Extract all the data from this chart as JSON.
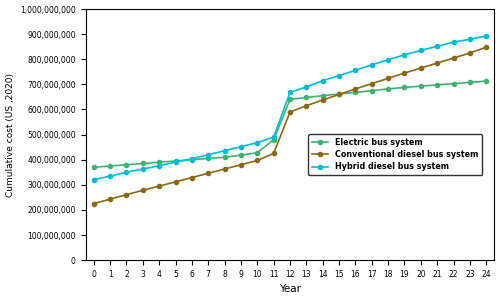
{
  "years": [
    0,
    1,
    2,
    3,
    4,
    5,
    6,
    7,
    8,
    9,
    10,
    11,
    12,
    13,
    14,
    15,
    16,
    17,
    18,
    19,
    20,
    21,
    22,
    23,
    24
  ],
  "electric": [
    370000000,
    375000000,
    380000000,
    385000000,
    390000000,
    395000000,
    400000000,
    405000000,
    410000000,
    418000000,
    428000000,
    480000000,
    640000000,
    648000000,
    655000000,
    662000000,
    668000000,
    675000000,
    682000000,
    688000000,
    693000000,
    698000000,
    703000000,
    708000000,
    713000000
  ],
  "conventional": [
    225000000,
    243000000,
    261000000,
    278000000,
    295000000,
    312000000,
    329000000,
    346000000,
    363000000,
    380000000,
    397000000,
    425000000,
    590000000,
    615000000,
    638000000,
    660000000,
    682000000,
    703000000,
    724000000,
    745000000,
    765000000,
    785000000,
    805000000,
    825000000,
    848000000
  ],
  "hybrid": [
    320000000,
    335000000,
    350000000,
    363000000,
    376000000,
    390000000,
    404000000,
    420000000,
    436000000,
    452000000,
    468000000,
    490000000,
    668000000,
    690000000,
    715000000,
    735000000,
    756000000,
    778000000,
    798000000,
    818000000,
    835000000,
    852000000,
    868000000,
    880000000,
    893000000
  ],
  "electric_color": "#3cb371",
  "conventional_color": "#8b6914",
  "hybrid_color": "#00bcd4",
  "electric_label": "Electric bus system",
  "conventional_label": "Conventional diesel bus system",
  "hybrid_label": "Hybrid diesel bus system",
  "ylabel": "Cumulative cost (US ,2020)",
  "xlabel": "Year",
  "ylim": [
    0,
    1000000000
  ],
  "yticks": [
    0,
    100000000,
    200000000,
    300000000,
    400000000,
    500000000,
    600000000,
    700000000,
    800000000,
    900000000,
    1000000000
  ],
  "marker": "o",
  "markersize": 3.0,
  "linewidth": 1.2,
  "figsize": [
    5.0,
    3.0
  ],
  "dpi": 100
}
